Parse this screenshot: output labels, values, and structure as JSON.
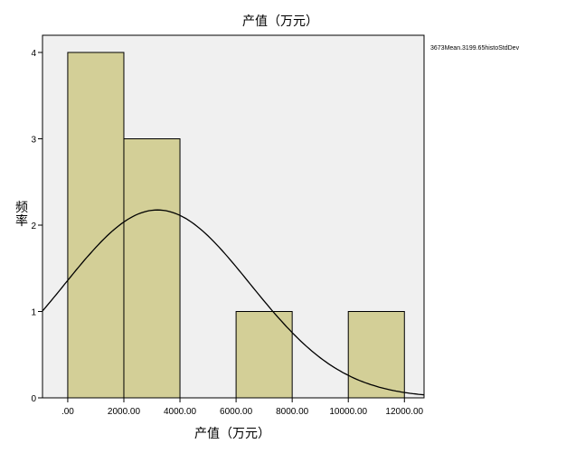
{
  "chart_data": {
    "type": "bar",
    "title": "产值（万元）",
    "xlabel": "产值（万元）",
    "ylabel": "频率",
    "x_tick_labels": [
      ".00",
      "2000.00",
      "4000.00",
      "6000.00",
      "8000.00",
      "10000.00",
      "12000.00"
    ],
    "x_ticks": [
      0,
      2000,
      4000,
      6000,
      8000,
      10000,
      12000
    ],
    "xlim": [
      -900,
      12700
    ],
    "y_ticks": [
      0,
      1,
      2,
      3,
      4
    ],
    "ylim": [
      0,
      4.2
    ],
    "bins": [
      {
        "start": 0,
        "end": 2000,
        "count": 4
      },
      {
        "start": 2000,
        "end": 4000,
        "count": 3
      },
      {
        "start": 4000,
        "end": 6000,
        "count": 0
      },
      {
        "start": 6000,
        "end": 8000,
        "count": 1
      },
      {
        "start": 8000,
        "end": 10000,
        "count": 0
      },
      {
        "start": 10000,
        "end": 12000,
        "count": 1
      }
    ],
    "normal_curve": {
      "mean": 3199.65,
      "std_dev": 3300,
      "n": 9,
      "bin_width": 2000
    },
    "legend_text": "3673Mean.3199.65histoStdDev",
    "colors": {
      "bar_fill": "#d3cf97",
      "bar_stroke": "#000000",
      "plot_bg": "#f0f0f0",
      "curve": "#000000"
    },
    "grid": false
  }
}
